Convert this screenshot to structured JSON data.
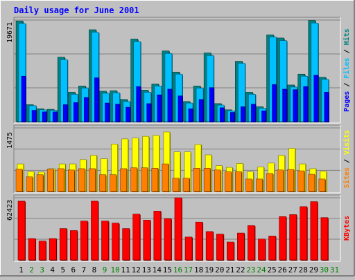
{
  "chart_data": [
    {
      "type": "bar",
      "title": "Daily usage for June 2001",
      "categories": [
        "1",
        "2",
        "3",
        "4",
        "5",
        "6",
        "7",
        "8",
        "9",
        "10",
        "11",
        "12",
        "13",
        "14",
        "15",
        "16",
        "17",
        "18",
        "19",
        "20",
        "21",
        "22",
        "23",
        "24",
        "25",
        "26",
        "27",
        "28",
        "29",
        "30",
        "31"
      ],
      "ylabel_parts": [
        "Pages",
        "Files",
        "Hits"
      ],
      "ymax": 19671,
      "ymax_label": "19671",
      "series": [
        {
          "name": "Hits",
          "color": "#008080",
          "values": [
            19500,
            3300,
            2500,
            2400,
            12500,
            5700,
            6900,
            17800,
            5900,
            6000,
            4300,
            16000,
            6100,
            7300,
            13700,
            9600,
            3900,
            6900,
            13300,
            3500,
            2300,
            11700,
            5700,
            2900,
            16800,
            16200,
            7100,
            9200,
            19600,
            8600,
            null
          ]
        },
        {
          "name": "Files",
          "color": "#00c0ff",
          "values": [
            19000,
            3100,
            2300,
            2200,
            12000,
            5300,
            6500,
            17300,
            5500,
            5600,
            3900,
            15500,
            5700,
            6900,
            13200,
            9200,
            3600,
            6500,
            12800,
            3200,
            2100,
            11300,
            5300,
            2600,
            16400,
            15700,
            6700,
            8800,
            19100,
            8200,
            null
          ]
        },
        {
          "name": "Pages",
          "color": "#0000ff",
          "values": [
            8800,
            2200,
            1900,
            1900,
            3300,
            3700,
            4700,
            8500,
            3600,
            3400,
            2800,
            6800,
            3500,
            5200,
            6300,
            5000,
            2500,
            4300,
            6600,
            2700,
            1800,
            2900,
            3400,
            2100,
            7200,
            6300,
            6200,
            6800,
            9000,
            5700,
            null
          ]
        }
      ]
    },
    {
      "type": "bar",
      "categories": [
        "1",
        "2",
        "3",
        "4",
        "5",
        "6",
        "7",
        "8",
        "9",
        "10",
        "11",
        "12",
        "13",
        "14",
        "15",
        "16",
        "17",
        "18",
        "19",
        "20",
        "21",
        "22",
        "23",
        "24",
        "25",
        "26",
        "27",
        "28",
        "29",
        "30",
        "31"
      ],
      "ylabel_parts": [
        "Sites",
        "Visits"
      ],
      "ymax": 1475,
      "ymax_label": "1475",
      "series": [
        {
          "name": "Visits",
          "color": "#ffff00",
          "values": [
            640,
            460,
            450,
            530,
            640,
            640,
            740,
            840,
            760,
            1100,
            1220,
            1240,
            1280,
            1300,
            1380,
            920,
            920,
            1090,
            850,
            600,
            560,
            650,
            460,
            570,
            660,
            840,
            1000,
            640,
            530,
            470,
            null
          ]
        },
        {
          "name": "Sites",
          "color": "#ff8000",
          "values": [
            520,
            340,
            390,
            520,
            530,
            500,
            530,
            530,
            390,
            390,
            530,
            550,
            550,
            540,
            640,
            310,
            310,
            540,
            540,
            500,
            460,
            460,
            290,
            290,
            420,
            500,
            510,
            480,
            400,
            290,
            null
          ]
        }
      ]
    },
    {
      "type": "bar",
      "categories": [
        "1",
        "2",
        "3",
        "4",
        "5",
        "6",
        "7",
        "8",
        "9",
        "10",
        "11",
        "12",
        "13",
        "14",
        "15",
        "16",
        "17",
        "18",
        "19",
        "20",
        "21",
        "22",
        "23",
        "24",
        "25",
        "26",
        "27",
        "28",
        "29",
        "30",
        "31"
      ],
      "ylabel_parts": [
        "KBytes"
      ],
      "ymax": 62423,
      "ymax_label": "62423",
      "series": [
        {
          "name": "KBytes",
          "color": "#ff0000",
          "values": [
            59000,
            21500,
            19000,
            21500,
            31500,
            29500,
            39000,
            59000,
            39000,
            37000,
            31500,
            46000,
            40000,
            49000,
            41500,
            62400,
            23000,
            38000,
            28500,
            26000,
            18000,
            27000,
            34500,
            21000,
            24000,
            43500,
            45500,
            53500,
            58500,
            42500,
            null
          ]
        }
      ]
    }
  ],
  "x_label_colors": {
    "weekday": "#000000",
    "weekend": "#008000"
  },
  "weekend_days": [
    "2",
    "3",
    "9",
    "10",
    "16",
    "17",
    "23",
    "24",
    "30",
    "31"
  ],
  "colors": {
    "background": "#c0c0c0",
    "border_light": "#ffffff",
    "border_dark": "#808080",
    "title": "#0000ff",
    "axis_label": "#000000"
  }
}
